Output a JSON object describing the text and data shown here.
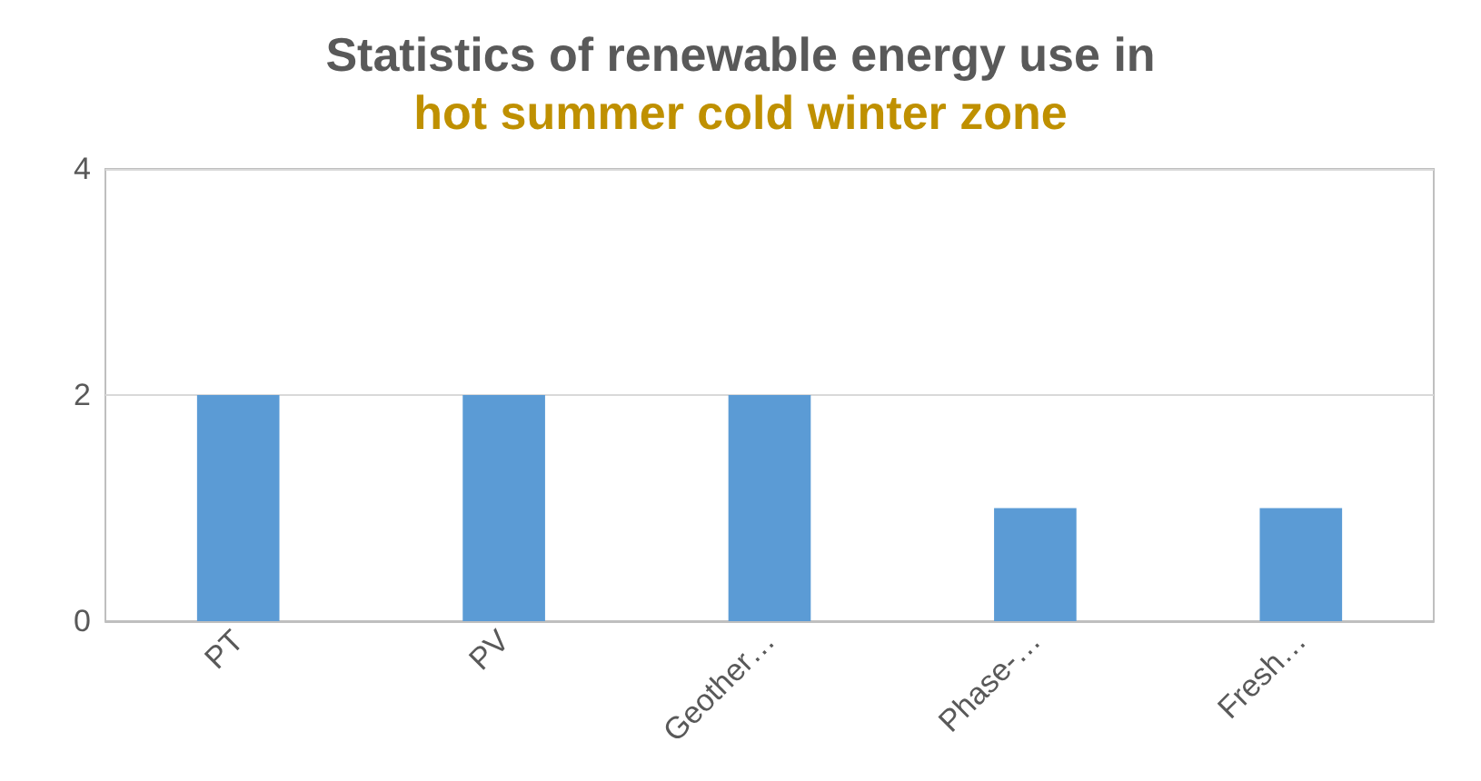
{
  "chart_data": {
    "type": "bar",
    "title": "Statistics of renewable energy use in",
    "subtitle": "hot summer cold winter zone",
    "categories": [
      "PT",
      "PV",
      "Geother…",
      "Phase-…",
      "Fresh…"
    ],
    "values": [
      2,
      2,
      2,
      1,
      1
    ],
    "color": "#5b9bd5",
    "ylim": [
      0,
      4
    ],
    "yticks": [
      0,
      2,
      4
    ],
    "grid": "y"
  }
}
